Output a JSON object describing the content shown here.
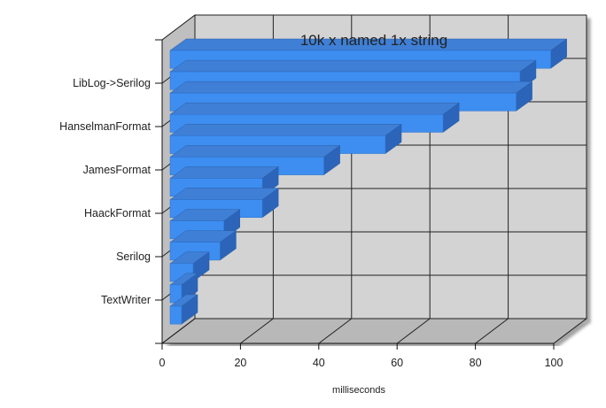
{
  "chart_data": {
    "type": "bar",
    "orientation": "horizontal",
    "three_d": true,
    "title": "10k x named 1x string",
    "xlabel": "milliseconds",
    "ylabel": "",
    "xlim": [
      0,
      100
    ],
    "x_ticks": [
      "0",
      "20",
      "40",
      "60",
      "80",
      "100"
    ],
    "y_tick_labels": [
      "LibLog->Serilog",
      "HanselmanFormat",
      "JamesFormat",
      "HaackFormat",
      "Serilog",
      "TextWriter"
    ],
    "bar_values": [
      99,
      91,
      90,
      71,
      56,
      40,
      24,
      24,
      14,
      13,
      6,
      3,
      3
    ],
    "grid": true,
    "bar_color": "#3d8ef0",
    "wall_color": "#d3d3d3"
  }
}
